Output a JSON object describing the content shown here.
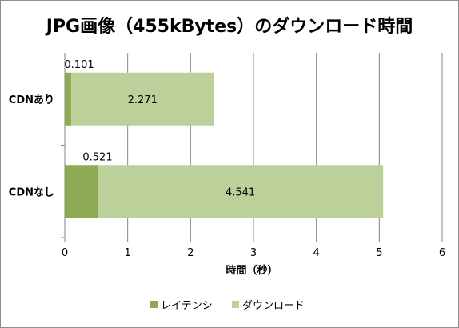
{
  "chart_data": {
    "type": "bar",
    "orientation": "horizontal",
    "stacked": true,
    "title": "JPG画像（455kBytes）のダウンロード時間",
    "categories": [
      "CDNあり",
      "CDNなし"
    ],
    "series": [
      {
        "name": "レイテンシ",
        "values": [
          0.101,
          0.521
        ],
        "color": "#8eaa54"
      },
      {
        "name": "ダウンロード",
        "values": [
          2.271,
          4.541
        ],
        "color": "#bcd19a"
      }
    ],
    "xlabel": "時間（秒）",
    "xlim": [
      0,
      6
    ],
    "xticks": [
      "0",
      "1",
      "2",
      "3",
      "4",
      "5",
      "6"
    ],
    "data_labels": [
      [
        "0.101",
        "0.521"
      ],
      [
        "2.271",
        "4.541"
      ]
    ],
    "grid": "vertical",
    "legend_position": "bottom"
  }
}
